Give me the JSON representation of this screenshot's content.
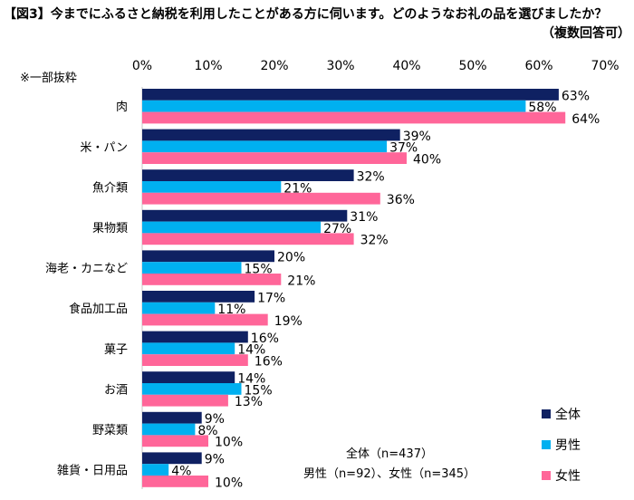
{
  "chart_data": {
    "type": "bar",
    "orientation": "horizontal",
    "title": "【図3】今までにふるさと納税を利用したことがある方に伺います。どのようなお礼の品を選びましたか？",
    "subtitle": "（複数回答可）",
    "note": "※一部抜粋",
    "categories": [
      "肉",
      "米・パン",
      "魚介類",
      "果物類",
      "海老・カニなど",
      "食品加工品",
      "菓子",
      "お酒",
      "野菜類",
      "雑貨・日用品"
    ],
    "series": [
      {
        "name": "全体",
        "color": "#0f2162",
        "values": [
          63,
          39,
          32,
          31,
          20,
          17,
          16,
          14,
          9,
          9
        ]
      },
      {
        "name": "男性",
        "color": "#00b0f0",
        "values": [
          58,
          37,
          21,
          27,
          15,
          11,
          14,
          15,
          8,
          4
        ]
      },
      {
        "name": "女性",
        "color": "#ff6699",
        "values": [
          64,
          40,
          36,
          32,
          21,
          19,
          16,
          13,
          10,
          10
        ]
      }
    ],
    "xlim": [
      0,
      70
    ],
    "xticks": [
      "0%",
      "10%",
      "20%",
      "30%",
      "40%",
      "50%",
      "60%",
      "70%"
    ],
    "value_suffix": "%",
    "grid": false,
    "legend_position": "bottom-right",
    "sample_note": [
      "全体（n=437）",
      "男性（n=92）、女性（n=345）"
    ]
  }
}
